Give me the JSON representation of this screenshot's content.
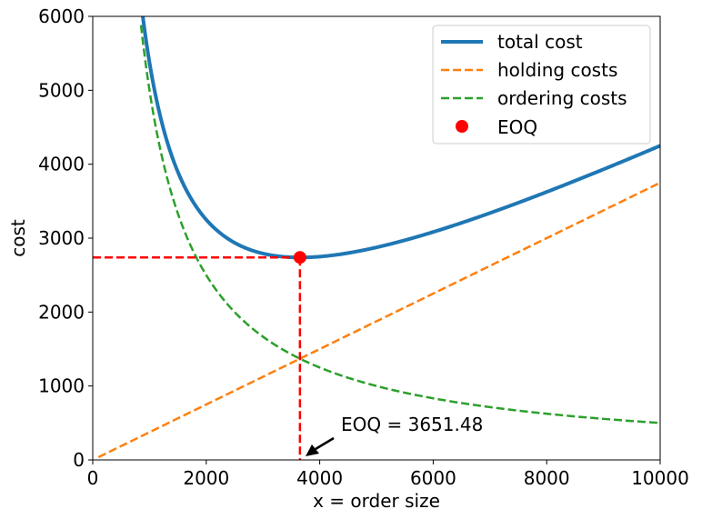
{
  "chart_data": {
    "type": "line",
    "xlabel": "x = order size",
    "ylabel": "cost",
    "xlim": [
      0,
      10000
    ],
    "ylim": [
      0,
      6000
    ],
    "xticks": [
      0,
      2000,
      4000,
      6000,
      8000,
      10000
    ],
    "yticks": [
      0,
      1000,
      2000,
      3000,
      4000,
      5000,
      6000
    ],
    "xtick_labels": [
      "0",
      "2000",
      "4000",
      "6000",
      "8000",
      "10000"
    ],
    "ytick_labels": [
      "0",
      "1000",
      "2000",
      "3000",
      "4000",
      "5000",
      "6000"
    ],
    "legend_position": "top-right",
    "grid": false,
    "series": [
      {
        "name": "total cost",
        "style": "solid",
        "color": "#1f77b4",
        "x": [
          800,
          1000,
          1500,
          2000,
          2500,
          3000,
          3651.48,
          4000,
          5000,
          6000,
          7000,
          8000,
          9000,
          10000
        ],
        "values": [
          6170,
          5375,
          3897,
          3167,
          2772,
          2795,
          2739,
          2758,
          2938,
          3189,
          3470,
          3767,
          4079,
          4375
        ]
      },
      {
        "name": "holding costs",
        "style": "dashed",
        "color": "#ff7f0e",
        "x": [
          100,
          2000,
          4000,
          6000,
          8000,
          10000
        ],
        "values": [
          37.5,
          750,
          1500,
          2250,
          3000,
          3750
        ]
      },
      {
        "name": "ordering costs",
        "style": "dashed",
        "color": "#2ca02c",
        "x": [
          850,
          1000,
          1500,
          2000,
          3000,
          3651.48,
          4000,
          5000,
          6000,
          8000,
          10000
        ],
        "values": [
          5882,
          5000,
          3333,
          2500,
          1667,
          1369,
          1250,
          1000,
          833,
          625,
          500
        ]
      }
    ],
    "eoq": {
      "legend_label": "EOQ",
      "x": 3651.48,
      "y": 2739,
      "color": "#ff0000",
      "annotation": "EOQ = 3651.48"
    }
  }
}
